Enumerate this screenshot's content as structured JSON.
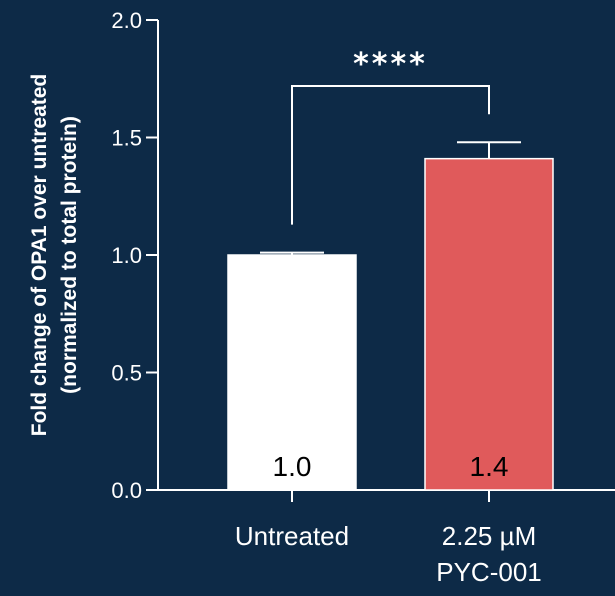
{
  "chart_data": {
    "type": "bar",
    "ylabel": [
      "Fold change of OPA1 over untreated",
      "(normalized to total protein)"
    ],
    "ylim": [
      0,
      2.0
    ],
    "yticks": [
      "0.0",
      "0.5",
      "1.0",
      "1.5",
      "2.0"
    ],
    "categories": [
      [
        "Untreated"
      ],
      [
        "2.25 µM",
        "PYC-001"
      ]
    ],
    "values": [
      1.0,
      1.41
    ],
    "errors": [
      0.01,
      0.07
    ],
    "data_labels": [
      "1.0",
      "1.4"
    ],
    "bar_colors": [
      "#ffffff",
      "#e05a5b"
    ],
    "significance": {
      "label": "****",
      "between": [
        0,
        1
      ]
    },
    "grid": false,
    "colors": {
      "background": "#0d2a47",
      "axis": "#ffffff"
    }
  }
}
